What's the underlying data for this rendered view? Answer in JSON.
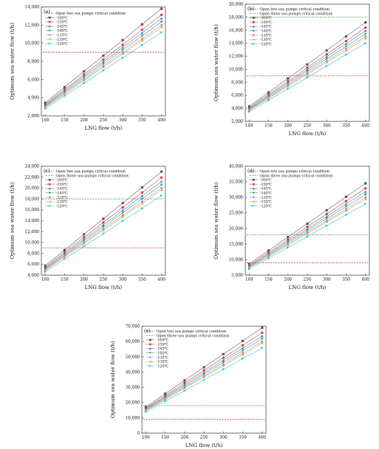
{
  "chart_data": [
    {
      "panel": "(a)",
      "type": "line",
      "xlabel": "LNG flow (t/h)",
      "ylabel": "Optimum sea water flow (t/h)",
      "xlim": [
        90,
        410
      ],
      "ylim": [
        2000,
        14000
      ],
      "xticks": [
        100,
        150,
        200,
        250,
        300,
        350,
        400
      ],
      "yticks": [
        2000,
        4000,
        6000,
        8000,
        10000,
        12000,
        14000
      ],
      "ytick_labels": [
        "2,000",
        "4,000",
        "6,000",
        "8,000",
        "10,000",
        "12,000",
        "14,000"
      ],
      "x": [
        100,
        150,
        200,
        250,
        300,
        350,
        400
      ],
      "reference_lines": [
        {
          "name": "Open two sea pumps critical condition",
          "y": 9000,
          "color": "#d62728"
        }
      ],
      "series": [
        {
          "name": "-160℃",
          "values": [
            3450,
            5170,
            6900,
            8620,
            10340,
            12070,
            13800
          ],
          "color": "#555555",
          "marker": "square"
        },
        {
          "name": "-150℃",
          "values": [
            3280,
            4920,
            6560,
            8200,
            9840,
            11480,
            13120
          ],
          "color": "#e8313a",
          "marker": "circle"
        },
        {
          "name": "-145℃",
          "values": [
            3180,
            4770,
            6360,
            7950,
            9540,
            11130,
            12720
          ],
          "color": "#3c6ee6",
          "marker": "triangle-up"
        },
        {
          "name": "-140℃",
          "values": [
            3090,
            4640,
            6180,
            7730,
            9270,
            10820,
            12360
          ],
          "color": "#22aa44",
          "marker": "triangle-down"
        },
        {
          "name": "-135℃",
          "values": [
            3000,
            4500,
            6000,
            7500,
            9000,
            10500,
            12000
          ],
          "color": "#b07fd8",
          "marker": "diamond"
        },
        {
          "name": "-130℃",
          "values": [
            2940,
            4410,
            5880,
            7350,
            8820,
            10290,
            11760
          ],
          "color": "#e6a21a",
          "marker": "triangle-left"
        },
        {
          "name": "-120℃",
          "values": [
            2800,
            4200,
            5600,
            7000,
            8400,
            9800,
            11200
          ],
          "color": "#13c8e8",
          "marker": "triangle-right"
        }
      ]
    },
    {
      "panel": "(b)",
      "type": "line",
      "xlabel": "LNG flow (t/h)",
      "ylabel": "Optimum sea water flow (t/h)",
      "xlim": [
        90,
        410
      ],
      "ylim": [
        2000,
        20000
      ],
      "xticks": [
        100,
        150,
        200,
        250,
        300,
        350,
        400
      ],
      "yticks": [
        2000,
        4000,
        6000,
        8000,
        10000,
        12000,
        14000,
        16000,
        18000,
        20000
      ],
      "ytick_labels": [
        "2,000",
        "4,000",
        "6,000",
        "8,000",
        "10,000",
        "12,000",
        "14,000",
        "16,000",
        "18,000",
        "20,000"
      ],
      "x": [
        100,
        150,
        200,
        250,
        300,
        350,
        400
      ],
      "reference_lines": [
        {
          "name": "Open two sea pumps critical condition",
          "y": 9000,
          "color": "#d62728"
        },
        {
          "name": "Open three sea pumps critical condition",
          "y": 18000,
          "color": "#2ca02c"
        }
      ],
      "series": [
        {
          "name": "-160℃",
          "values": [
            4300,
            6450,
            8600,
            10750,
            12900,
            15050,
            17200
          ],
          "color": "#555555",
          "marker": "square"
        },
        {
          "name": "-150℃",
          "values": [
            4100,
            6150,
            8200,
            10250,
            12300,
            14350,
            16400
          ],
          "color": "#e8313a",
          "marker": "circle"
        },
        {
          "name": "-145℃",
          "values": [
            3980,
            5970,
            7960,
            9950,
            11940,
            13930,
            15920
          ],
          "color": "#3c6ee6",
          "marker": "triangle-up"
        },
        {
          "name": "-140℃",
          "values": [
            3860,
            5790,
            7720,
            9650,
            11580,
            13510,
            15440
          ],
          "color": "#22aa44",
          "marker": "triangle-down"
        },
        {
          "name": "-135℃",
          "values": [
            3760,
            5640,
            7520,
            9400,
            11280,
            13160,
            15040
          ],
          "color": "#b07fd8",
          "marker": "diamond"
        },
        {
          "name": "-130℃",
          "values": [
            3680,
            5520,
            7360,
            9200,
            11040,
            12880,
            14720
          ],
          "color": "#e6a21a",
          "marker": "triangle-left"
        },
        {
          "name": "-120℃",
          "values": [
            3500,
            5250,
            7000,
            8750,
            10500,
            12250,
            14000
          ],
          "color": "#13c8e8",
          "marker": "triangle-right"
        }
      ]
    },
    {
      "panel": "(c)",
      "type": "line",
      "xlabel": "LNG flow (t/h)",
      "ylabel": "Optimum sea water flow (t/h)",
      "xlim": [
        90,
        410
      ],
      "ylim": [
        4000,
        24000
      ],
      "xticks": [
        100,
        150,
        200,
        250,
        300,
        350,
        400
      ],
      "yticks": [
        4000,
        6000,
        8000,
        10000,
        12000,
        14000,
        16000,
        18000,
        20000,
        22000,
        24000
      ],
      "ytick_labels": [
        "4,000",
        "6,000",
        "8,000",
        "10,000",
        "12,000",
        "14,000",
        "16,000",
        "18,000",
        "20,000",
        "22,000",
        "24,000"
      ],
      "x": [
        100,
        150,
        200,
        250,
        300,
        350,
        400
      ],
      "reference_lines": [
        {
          "name": "Open two sea pumps critical condition",
          "y": 9000,
          "color": "#d62728"
        },
        {
          "name": "Open three sea pumps critical condition",
          "y": 18000,
          "color": "#2ca02c"
        }
      ],
      "series": [
        {
          "name": "-160℃",
          "values": [
            5750,
            8620,
            11500,
            14370,
            17250,
            20120,
            23000
          ],
          "color": "#555555",
          "marker": "square"
        },
        {
          "name": "-150℃",
          "values": [
            5480,
            8220,
            10960,
            13700,
            16440,
            19180,
            21920
          ],
          "color": "#e8313a",
          "marker": "circle"
        },
        {
          "name": "-145℃",
          "values": [
            5300,
            7950,
            10600,
            13250,
            15900,
            18550,
            21200
          ],
          "color": "#3c6ee6",
          "marker": "triangle-up"
        },
        {
          "name": "-140℃",
          "values": [
            5150,
            7720,
            10300,
            12870,
            15450,
            18020,
            20600
          ],
          "color": "#22aa44",
          "marker": "triangle-down"
        },
        {
          "name": "-135℃",
          "values": [
            5000,
            7500,
            10000,
            12500,
            15000,
            17500,
            20000
          ],
          "color": "#b07fd8",
          "marker": "diamond"
        },
        {
          "name": "-130℃",
          "values": [
            4900,
            7350,
            9800,
            12250,
            14700,
            17150,
            19600
          ],
          "color": "#e6a21a",
          "marker": "triangle-left"
        },
        {
          "name": "-120℃",
          "values": [
            4650,
            6970,
            9300,
            11620,
            13950,
            16270,
            18600
          ],
          "color": "#13c8e8",
          "marker": "triangle-right"
        }
      ]
    },
    {
      "panel": "(d)",
      "type": "line",
      "xlabel": "LNG flow (t/h)",
      "ylabel": "Optimum sea water flow (t/h)",
      "xlim": [
        90,
        410
      ],
      "ylim": [
        5000,
        40000
      ],
      "xticks": [
        100,
        150,
        200,
        250,
        300,
        350,
        400
      ],
      "yticks": [
        5000,
        10000,
        15000,
        20000,
        25000,
        30000,
        35000,
        40000
      ],
      "ytick_labels": [
        "5,000",
        "10,000",
        "15,000",
        "20,000",
        "25,000",
        "30,000",
        "35,000",
        "40,000"
      ],
      "x": [
        100,
        150,
        200,
        250,
        300,
        350,
        400
      ],
      "reference_lines": [
        {
          "name": "Open two sea pumps critical condition",
          "y": 9000,
          "color": "#d62728"
        },
        {
          "name": "Open three sea pumps critical condition",
          "y": 18000,
          "color": "#2ca02c"
        }
      ],
      "series": [
        {
          "name": "-160℃",
          "values": [
            8620,
            12940,
            17250,
            21560,
            25870,
            30190,
            34500
          ],
          "color": "#555555",
          "marker": "square"
        },
        {
          "name": "-150℃",
          "values": [
            8220,
            12330,
            16440,
            20550,
            24660,
            28770,
            32880
          ],
          "color": "#e8313a",
          "marker": "circle"
        },
        {
          "name": "-145℃",
          "values": [
            7950,
            11920,
            15900,
            19870,
            23850,
            27820,
            31800
          ],
          "color": "#3c6ee6",
          "marker": "triangle-up"
        },
        {
          "name": "-140℃",
          "values": [
            7720,
            11590,
            15450,
            19310,
            23170,
            27040,
            30900
          ],
          "color": "#22aa44",
          "marker": "triangle-down"
        },
        {
          "name": "-135℃",
          "values": [
            7500,
            11250,
            15000,
            18750,
            22500,
            26250,
            30000
          ],
          "color": "#b07fd8",
          "marker": "diamond"
        },
        {
          "name": "-130℃",
          "values": [
            7350,
            11020,
            14700,
            18370,
            22050,
            25720,
            29400
          ],
          "color": "#e6a21a",
          "marker": "triangle-left"
        },
        {
          "name": "-120℃",
          "values": [
            6970,
            10460,
            13950,
            17440,
            20920,
            24410,
            27900
          ],
          "color": "#13c8e8",
          "marker": "triangle-right"
        }
      ]
    },
    {
      "panel": "(e)",
      "type": "line",
      "xlabel": "LNG flow (t/h)",
      "ylabel": "Optimum sea water flow (t/h)",
      "xlim": [
        90,
        410
      ],
      "ylim": [
        0,
        70000
      ],
      "xticks": [
        100,
        150,
        200,
        250,
        300,
        350,
        400
      ],
      "yticks": [
        0,
        10000,
        20000,
        30000,
        40000,
        50000,
        60000,
        70000
      ],
      "ytick_labels": [
        "0",
        "10,000",
        "20,000",
        "30,000",
        "40,000",
        "50,000",
        "60,000",
        "70,000"
      ],
      "x": [
        100,
        150,
        200,
        250,
        300,
        350,
        400
      ],
      "reference_lines": [
        {
          "name": "Open two sea pumps critical condition",
          "y": 9000,
          "color": "#d62728"
        },
        {
          "name": "Open three sea pumps critical condition",
          "y": 18000,
          "color": "#2ca02c"
        }
      ],
      "series": [
        {
          "name": "-160℃",
          "values": [
            17250,
            25870,
            34500,
            43120,
            51750,
            60370,
            69000
          ],
          "color": "#555555",
          "marker": "square"
        },
        {
          "name": "-150℃",
          "values": [
            16440,
            24660,
            32880,
            41100,
            49320,
            57540,
            65760
          ],
          "color": "#e8313a",
          "marker": "circle"
        },
        {
          "name": "-145℃",
          "values": [
            15900,
            23850,
            31800,
            39750,
            47700,
            55650,
            63600
          ],
          "color": "#3c6ee6",
          "marker": "triangle-up"
        },
        {
          "name": "-140℃",
          "values": [
            15450,
            23170,
            30900,
            38620,
            46350,
            54070,
            61800
          ],
          "color": "#22aa44",
          "marker": "triangle-down"
        },
        {
          "name": "-135℃",
          "values": [
            15000,
            22500,
            30000,
            37500,
            45000,
            52500,
            60000
          ],
          "color": "#b07fd8",
          "marker": "diamond"
        },
        {
          "name": "-130℃",
          "values": [
            14700,
            22050,
            29400,
            36750,
            44100,
            51450,
            58800
          ],
          "color": "#e6a21a",
          "marker": "triangle-left"
        },
        {
          "name": "-120℃",
          "values": [
            13950,
            20920,
            27900,
            34870,
            41850,
            48820,
            55800
          ],
          "color": "#13c8e8",
          "marker": "triangle-right"
        }
      ]
    }
  ]
}
